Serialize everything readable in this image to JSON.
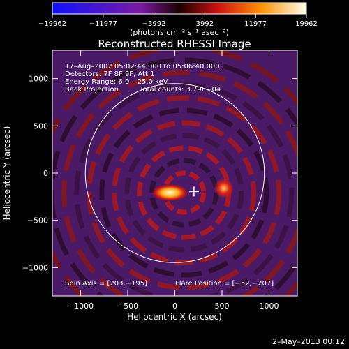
{
  "chart_data": {
    "type": "heatmap",
    "title": "Reconstructed RHESSI Image",
    "xlabel": "Heliocentric X (arcsec)",
    "ylabel": "Heliocentric Y (arcsec)",
    "xlim": [
      -1300,
      1300
    ],
    "ylim": [
      -1300,
      1300
    ],
    "xticks": [
      -1000,
      -500,
      0,
      500,
      1000
    ],
    "xtick_labels": [
      "−1000",
      "−500",
      "0",
      "500",
      "1000"
    ],
    "yticks": [
      -1000,
      -500,
      0,
      500,
      1000
    ],
    "ytick_labels": [
      "−1000",
      "−500",
      "0",
      "500",
      "1000"
    ],
    "colorbar": {
      "ticks": [
        -19962,
        -11977,
        -3992,
        3992,
        11977,
        19962
      ],
      "tick_labels": [
        "−19962",
        "−11977",
        "−3992",
        "3992",
        "11977",
        "19962"
      ],
      "range": [
        -19962,
        19962
      ],
      "units_text": "(photons cm⁻² s⁻¹ asec⁻²)"
    },
    "annotations": [
      "17–Aug–2002 05:02:44.000 to 05:06:40.000",
      "Detectors: 7F 8F 9F, Att 1",
      "Energy Range: 6.0 – 25.0 keV",
      "Back Projection",
      "Total counts: 3.79E+04"
    ],
    "spin_axis_label": "Spin Axis = [203,−195]",
    "flare_position_label": "Flare Position = [−52,−207]",
    "spin_axis": [
      203,
      -195
    ],
    "flare_position": [
      -52,
      -207
    ],
    "solar_limb_radius": 950,
    "sources": [
      {
        "x": -52,
        "y": -207,
        "level": 1.0
      },
      {
        "x": 520,
        "y": -160,
        "level": 0.75
      }
    ]
  },
  "footer_date": "2–May–2013 00:12",
  "colors": {
    "background": "#000000",
    "frame": "#ffffff",
    "limb": "#ffffff"
  }
}
